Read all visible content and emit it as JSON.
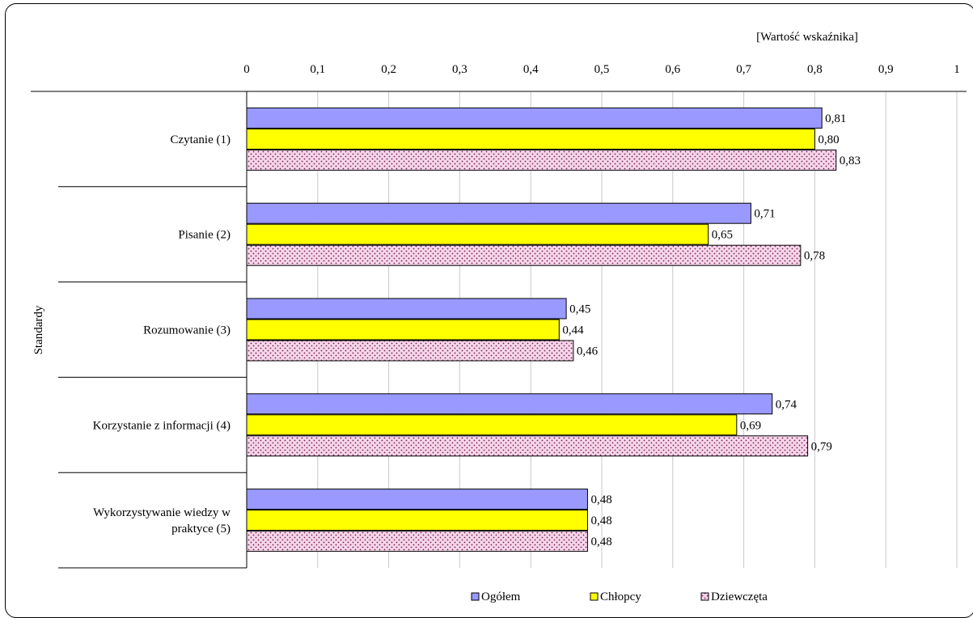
{
  "chart_data": {
    "type": "bar",
    "orientation": "horizontal",
    "axis_title_top": "[Wartość wskaźnika]",
    "ylabel": "Standardy",
    "xlim": [
      0,
      1
    ],
    "xticks": [
      "0",
      "0,1",
      "0,2",
      "0,3",
      "0,4",
      "0,5",
      "0,6",
      "0,7",
      "0,8",
      "0,9",
      "1"
    ],
    "grid": true,
    "legend_position": "bottom",
    "categories": [
      [
        "Czytanie (1)"
      ],
      [
        "Pisanie (2)"
      ],
      [
        "Rozumowanie (3)"
      ],
      [
        "Korzystanie z informacji (4)"
      ],
      [
        "Wykorzystywanie wiedzy w",
        "praktyce (5)"
      ]
    ],
    "series": [
      {
        "name": "Ogółem",
        "color": "#9999ff",
        "pattern": "solid",
        "values": [
          0.81,
          0.71,
          0.45,
          0.74,
          0.48
        ],
        "labels": [
          "0,81",
          "0,71",
          "0,45",
          "0,74",
          "0,48"
        ]
      },
      {
        "name": "Chłopcy",
        "color": "#ffff00",
        "pattern": "solid",
        "values": [
          0.8,
          0.65,
          0.44,
          0.69,
          0.48
        ],
        "labels": [
          "0,80",
          "0,65",
          "0,44",
          "0,69",
          "0,48"
        ]
      },
      {
        "name": "Dziewczęta",
        "color": "#f5d6ea",
        "pattern": "dotted",
        "values": [
          0.83,
          0.78,
          0.46,
          0.79,
          0.48
        ],
        "labels": [
          "0,83",
          "0,78",
          "0,46",
          "0,79",
          "0,48"
        ]
      }
    ]
  }
}
